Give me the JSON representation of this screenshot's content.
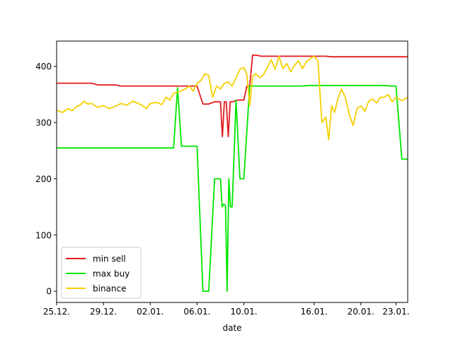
{
  "chart_data": {
    "type": "line",
    "title": "",
    "xlabel": "date",
    "ylabel": "",
    "x_unit": "date (DD.MM., Dec 25 → Jan 24)",
    "xlim": [
      "25.12.",
      "24.01."
    ],
    "ylim": [
      -20,
      445
    ],
    "x_ticks": [
      "25.12.",
      "29.12.",
      "02.01.",
      "06.01.",
      "10.01.",
      "16.01.",
      "20.01.",
      "23.01."
    ],
    "y_ticks": [
      0,
      100,
      200,
      300,
      400
    ],
    "grid": false,
    "legend": {
      "placement": "lower-left",
      "entries": [
        "min sell",
        "max buy",
        "binance"
      ]
    },
    "series": [
      {
        "name": "min sell",
        "color": "#e41a1c",
        "style": "step",
        "points": [
          [
            "25.12.",
            370
          ],
          [
            "28.12.",
            370
          ],
          [
            "28.12.",
            367
          ],
          [
            "30.12.",
            367
          ],
          [
            "30.12.",
            365
          ],
          [
            "05.01.",
            365
          ],
          [
            "06.01.",
            365
          ],
          [
            "06.01.",
            333
          ],
          [
            "07.01.",
            333
          ],
          [
            "07.01.",
            337
          ],
          [
            "08.01.",
            337
          ],
          [
            "08.01.",
            275
          ],
          [
            "08.01.",
            337
          ],
          [
            "08.01.",
            337
          ],
          [
            "08.01.",
            275
          ],
          [
            "08.01.",
            337
          ],
          [
            "09.01.",
            337
          ],
          [
            "09.01.",
            340
          ],
          [
            "10.01.",
            340
          ],
          [
            "10.01.",
            365
          ],
          [
            "10.01.",
            365
          ],
          [
            "10.01.",
            420
          ],
          [
            "11.01.",
            420
          ],
          [
            "11.01.",
            418
          ],
          [
            "17.01.",
            418
          ],
          [
            "17.01.",
            417
          ],
          [
            "24.01.",
            417
          ]
        ]
      },
      {
        "name": "max buy",
        "color": "#00e600",
        "style": "step",
        "points": [
          [
            "25.12.",
            255
          ],
          [
            "04.01.",
            255
          ],
          [
            "04.01.",
            362
          ],
          [
            "04.01.",
            258
          ],
          [
            "06.01.",
            258
          ],
          [
            "06.01.",
            0
          ],
          [
            "07.01.",
            0
          ],
          [
            "07.01.",
            200
          ],
          [
            "08.01.",
            200
          ],
          [
            "08.01.",
            150
          ],
          [
            "08.01.",
            155
          ],
          [
            "08.01.",
            152
          ],
          [
            "08.01.",
            0
          ],
          [
            "08.01.",
            200
          ],
          [
            "08.01.",
            150
          ],
          [
            "09.01.",
            150
          ],
          [
            "09.01.",
            340
          ],
          [
            "09.01.",
            200
          ],
          [
            "10.01.",
            200
          ],
          [
            "10.01.",
            365
          ],
          [
            "15.01.",
            365
          ],
          [
            "15.01.",
            366
          ],
          [
            "22.01.",
            366
          ],
          [
            "22.01.",
            365
          ],
          [
            "23.01.",
            365
          ],
          [
            "23.01.",
            235
          ],
          [
            "24.01.",
            235
          ]
        ]
      },
      {
        "name": "binance",
        "color": "#f5d000",
        "style": "line",
        "points": [
          [
            "25.12.",
            322
          ],
          [
            "25.12.",
            318
          ],
          [
            "26.12.",
            325
          ],
          [
            "26.12.",
            321
          ],
          [
            "26.12.",
            328
          ],
          [
            "27.12.",
            331
          ],
          [
            "27.12.",
            338
          ],
          [
            "27.12.",
            333
          ],
          [
            "28.12.",
            334
          ],
          [
            "28.12.",
            327
          ],
          [
            "29.12.",
            330
          ],
          [
            "29.12.",
            325
          ],
          [
            "30.12.",
            329
          ],
          [
            "30.12.",
            334
          ],
          [
            "31.12.",
            331
          ],
          [
            "31.12.",
            338
          ],
          [
            "01.01.",
            334
          ],
          [
            "01.01.",
            330
          ],
          [
            "01.01.",
            325
          ],
          [
            "02.01.",
            334
          ],
          [
            "02.01.",
            336
          ],
          [
            "03.01.",
            332
          ],
          [
            "03.01.",
            345
          ],
          [
            "03.01.",
            340
          ],
          [
            "04.01.",
            352
          ],
          [
            "04.01.",
            355
          ],
          [
            "05.01.",
            360
          ],
          [
            "05.01.",
            365
          ],
          [
            "05.01.",
            356
          ],
          [
            "06.01.",
            370
          ],
          [
            "06.01.",
            375
          ],
          [
            "06.01.",
            387
          ],
          [
            "07.01.",
            384
          ],
          [
            "07.01.",
            345
          ],
          [
            "07.01.",
            365
          ],
          [
            "08.01.",
            360
          ],
          [
            "08.01.",
            370
          ],
          [
            "08.01.",
            372
          ],
          [
            "09.01.",
            365
          ],
          [
            "09.01.",
            380
          ],
          [
            "09.01.",
            395
          ],
          [
            "10.01.",
            398
          ],
          [
            "10.01.",
            386
          ],
          [
            "10.01.",
            330
          ],
          [
            "10.01.",
            382
          ],
          [
            "11.01.",
            387
          ],
          [
            "11.01.",
            380
          ],
          [
            "11.01.",
            385
          ],
          [
            "12.01.",
            398
          ],
          [
            "12.01.",
            412
          ],
          [
            "12.01.",
            395
          ],
          [
            "13.01.",
            418
          ],
          [
            "13.01.",
            396
          ],
          [
            "13.01.",
            405
          ],
          [
            "14.01.",
            390
          ],
          [
            "14.01.",
            402
          ],
          [
            "14.01.",
            410
          ],
          [
            "15.01.",
            396
          ],
          [
            "15.01.",
            408
          ],
          [
            "15.01.",
            414
          ],
          [
            "16.01.",
            418
          ],
          [
            "16.01.",
            410
          ],
          [
            "16.01.",
            300
          ],
          [
            "17.01.",
            310
          ],
          [
            "17.01.",
            270
          ],
          [
            "17.01.",
            330
          ],
          [
            "17.01.",
            318
          ],
          [
            "18.01.",
            340
          ],
          [
            "18.01.",
            360
          ],
          [
            "18.01.",
            345
          ],
          [
            "19.01.",
            315
          ],
          [
            "19.01.",
            295
          ],
          [
            "19.01.",
            325
          ],
          [
            "20.01.",
            330
          ],
          [
            "20.01.",
            320
          ],
          [
            "20.01.",
            338
          ],
          [
            "21.01.",
            342
          ],
          [
            "21.01.",
            335
          ],
          [
            "21.01.",
            345
          ],
          [
            "22.01.",
            345
          ],
          [
            "22.01.",
            350
          ],
          [
            "22.01.",
            337
          ],
          [
            "23.01.",
            345
          ],
          [
            "23.01.",
            339
          ],
          [
            "24.01.",
            345
          ]
        ]
      }
    ]
  }
}
